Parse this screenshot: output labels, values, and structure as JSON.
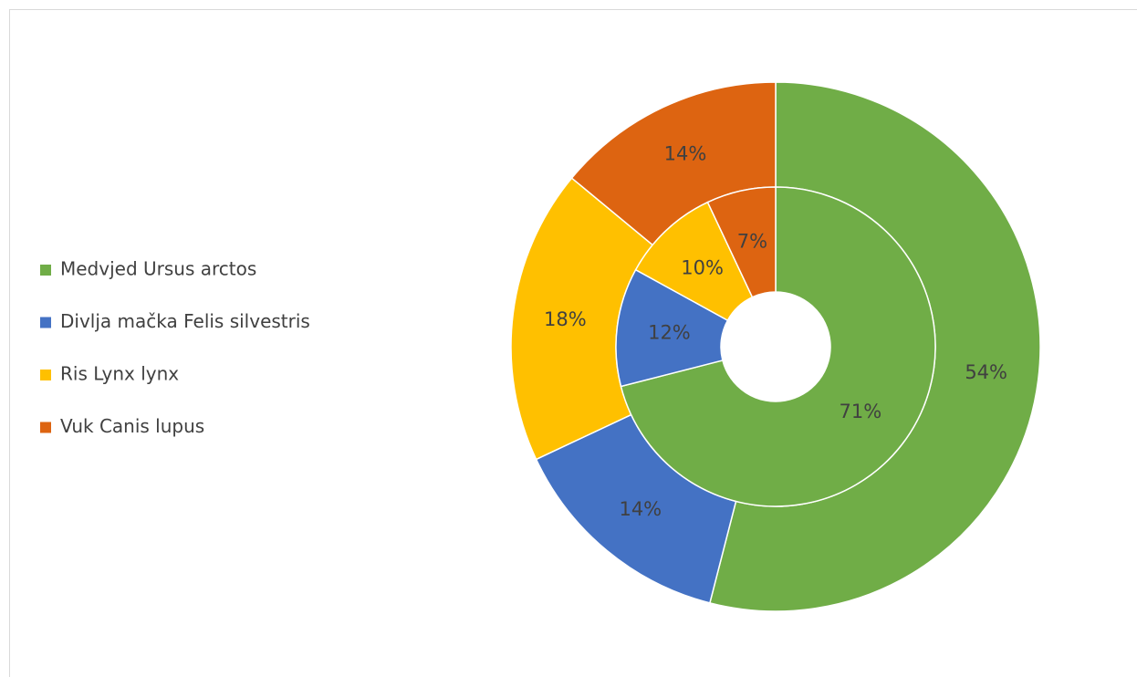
{
  "chart_data": {
    "type": "doughnut",
    "categories": [
      "Medvjed Ursus arctos",
      "Divlja mačka Felis silvestris",
      "Ris Lynx lynx",
      "Vuk Canis lupus"
    ],
    "colors": [
      "#70ad47",
      "#4472c4",
      "#ffc000",
      "#dd6411"
    ],
    "series": [
      {
        "values": [
          54,
          14,
          18,
          14
        ],
        "value_labels": [
          "54%",
          "14%",
          "18%",
          "14%"
        ]
      },
      {
        "values": [
          71,
          12,
          10,
          7
        ],
        "value_labels": [
          "71%",
          "12%",
          "10%",
          "7%"
        ]
      }
    ],
    "legend": "left"
  }
}
